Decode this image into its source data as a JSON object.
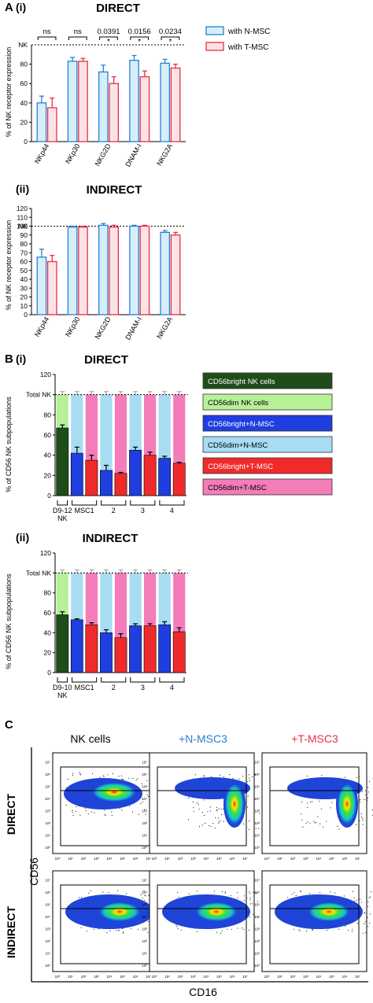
{
  "figure": {
    "panel_a_letter": "A",
    "panel_b_letter": "B",
    "panel_c_letter": "C"
  },
  "chart_data": [
    {
      "id": "A_i",
      "type": "bar",
      "panel_label": "(i)",
      "title": "DIRECT",
      "ylabel": "% of NK receptor expression",
      "ylim": [
        0,
        100
      ],
      "yticks": [
        0,
        20,
        40,
        60,
        80
      ],
      "reference_line": {
        "value": 100,
        "label": "NK"
      },
      "categories": [
        "NKp44",
        "NKp30",
        "NKG2D",
        "DNAM-I",
        "NKG2A"
      ],
      "series": [
        {
          "name": "with N-MSC",
          "values": [
            40,
            83,
            72,
            84,
            81
          ],
          "errors": [
            7,
            4,
            7,
            5,
            4
          ]
        },
        {
          "name": "with T-MSC",
          "values": [
            35,
            83,
            60,
            67,
            76
          ],
          "errors": [
            10,
            3,
            7,
            6,
            4
          ]
        }
      ],
      "significance": [
        "ns",
        "ns",
        "0.0391",
        "0.0156",
        "0.0234"
      ],
      "significance_marks": [
        "",
        "",
        "*",
        "*",
        "*"
      ],
      "legend": {
        "placement": "right"
      },
      "colors": {
        "n_msc_fill": "#d6eef9",
        "n_msc_edge": "#2a7fd4",
        "t_msc_fill": "#fde3e7",
        "t_msc_edge": "#e8303f"
      }
    },
    {
      "id": "A_ii",
      "type": "bar",
      "panel_label": "(ii)",
      "title": "INDIRECT",
      "ylabel": "% of NK receptor expression",
      "ylim": [
        0,
        120
      ],
      "yticks": [
        0,
        10,
        20,
        30,
        40,
        50,
        60,
        70,
        80,
        90,
        100,
        110,
        120
      ],
      "reference_line": {
        "value": 100,
        "label": "NK"
      },
      "categories": [
        "NKp44",
        "NKp30",
        "NKG2D",
        "DNAM-I",
        "NKG2A"
      ],
      "series": [
        {
          "name": "with N-MSC",
          "values": [
            65,
            99,
            101,
            100,
            93
          ],
          "errors": [
            9,
            1,
            2,
            1,
            2
          ]
        },
        {
          "name": "with T-MSC",
          "values": [
            60,
            99,
            99,
            100,
            90
          ],
          "errors": [
            7,
            1,
            2,
            1,
            3
          ]
        }
      ]
    },
    {
      "id": "B_i",
      "type": "bar",
      "panel_label": "(i)",
      "title": "DIRECT",
      "ylabel": "% of CD56 NK subpopulations",
      "ylim": [
        0,
        120
      ],
      "yticks": [
        0,
        20,
        40,
        60,
        80,
        100,
        120
      ],
      "reference_line": {
        "value": 100,
        "label": "Total NK"
      },
      "group_labels": [
        "D9-12 NK",
        "MSC1",
        "2",
        "3",
        "4"
      ],
      "group_label_lines": [
        [
          "D9-12",
          "NK"
        ],
        [
          "MSC1"
        ],
        [
          "2"
        ],
        [
          "3"
        ],
        [
          "4"
        ]
      ],
      "bars": [
        {
          "kind": "NK",
          "bright": 67,
          "bright_err": 3
        },
        {
          "kind": "N",
          "bright": 42,
          "bright_err": 6
        },
        {
          "kind": "T",
          "bright": 35,
          "bright_err": 5
        },
        {
          "kind": "N",
          "bright": 25,
          "bright_err": 5
        },
        {
          "kind": "T",
          "bright": 22,
          "bright_err": 1
        },
        {
          "kind": "N",
          "bright": 45,
          "bright_err": 3
        },
        {
          "kind": "T",
          "bright": 40,
          "bright_err": 3
        },
        {
          "kind": "N",
          "bright": 37,
          "bright_err": 2
        },
        {
          "kind": "T",
          "bright": 32,
          "bright_err": 1
        }
      ],
      "total": 100,
      "legend": {
        "placement": "right",
        "entries": [
          {
            "label": "CD56bright NK cells",
            "color": "#1f4d1a",
            "text_color": "#ffffff"
          },
          {
            "label": "CD56dim NK cells",
            "color": "#b8f098",
            "text_color": "#000000"
          },
          {
            "label": "CD56bright+N-MSC",
            "color": "#1f3ee0",
            "text_color": "#ffffff"
          },
          {
            "label": "CD56dim+N-MSC",
            "color": "#a8dcf3",
            "text_color": "#000000"
          },
          {
            "label": "CD56bright+T-MSC",
            "color": "#f02a2a",
            "text_color": "#ffffff"
          },
          {
            "label": "CD56dim+T-MSC",
            "color": "#f47cb8",
            "text_color": "#000000"
          }
        ]
      }
    },
    {
      "id": "B_ii",
      "type": "bar",
      "panel_label": "(ii)",
      "title": "INDIRECT",
      "ylabel": "% of CD56 NK subpopulations",
      "ylim": [
        0,
        120
      ],
      "yticks": [
        0,
        20,
        40,
        60,
        80,
        100,
        120
      ],
      "reference_line": {
        "value": 100,
        "label": "Total NK"
      },
      "group_labels": [
        "D9-10 NK",
        "MSC1",
        "2",
        "3",
        "4"
      ],
      "group_label_lines": [
        [
          "D9-10",
          "NK"
        ],
        [
          "MSC1"
        ],
        [
          "2"
        ],
        [
          "3"
        ],
        [
          "4"
        ]
      ],
      "bars": [
        {
          "kind": "NK",
          "bright": 58,
          "bright_err": 3
        },
        {
          "kind": "N",
          "bright": 53,
          "bright_err": 1
        },
        {
          "kind": "T",
          "bright": 48,
          "bright_err": 2
        },
        {
          "kind": "N",
          "bright": 40,
          "bright_err": 3
        },
        {
          "kind": "T",
          "bright": 35,
          "bright_err": 4
        },
        {
          "kind": "N",
          "bright": 47,
          "bright_err": 2
        },
        {
          "kind": "T",
          "bright": 47,
          "bright_err": 2
        },
        {
          "kind": "N",
          "bright": 48,
          "bright_err": 3
        },
        {
          "kind": "T",
          "bright": 41,
          "bright_err": 4
        }
      ],
      "total": 100
    },
    {
      "id": "C",
      "type": "scatter",
      "column_labels": [
        "NK cells",
        "+N-MSC3",
        "+T-MSC3"
      ],
      "column_colors": [
        "#000000",
        "#2a7fd4",
        "#e8303f"
      ],
      "row_labels": [
        "DIRECT",
        "INDIRECT"
      ],
      "xlabel": "CD16",
      "ylabel": "CD56",
      "axis_ticks": [
        "10⁰",
        "10¹",
        "10²",
        "10³",
        "10⁴",
        "10⁵",
        "10⁶",
        "10⁷"
      ]
    }
  ]
}
